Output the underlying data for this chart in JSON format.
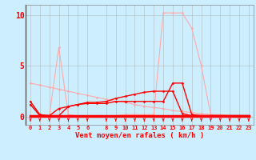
{
  "xlabel": "Vent moyen/en rafales ( km/h )",
  "x_values": [
    0,
    1,
    2,
    3,
    4,
    5,
    6,
    7,
    8,
    9,
    10,
    11,
    12,
    13,
    14,
    15,
    16,
    17,
    18,
    19,
    20,
    21,
    22,
    23
  ],
  "lines": [
    {
      "y": [
        3.3,
        3.1,
        2.9,
        2.7,
        2.5,
        2.3,
        2.1,
        1.9,
        1.7,
        1.5,
        1.4,
        1.2,
        1.0,
        0.9,
        0.8,
        0.6,
        0.5,
        0.4,
        0.3,
        0.2,
        0.2,
        0.1,
        0.1,
        0.05
      ],
      "color": "#ffaaaa",
      "lw": 0.8,
      "marker": "D",
      "ms": 1.5
    },
    {
      "y": [
        0.1,
        0.1,
        0.1,
        6.8,
        0.2,
        0.1,
        0.1,
        0.1,
        0.1,
        0.1,
        0.2,
        0.2,
        0.2,
        0.2,
        10.2,
        10.2,
        10.2,
        8.7,
        5.0,
        0.2,
        0.1,
        0.1,
        0.1,
        0.1
      ],
      "color": "#ffaaaa",
      "lw": 0.8,
      "marker": "D",
      "ms": 1.5
    },
    {
      "y": [
        1.5,
        0.2,
        0.1,
        0.1,
        1.0,
        1.2,
        1.3,
        1.3,
        1.3,
        1.5,
        1.5,
        1.5,
        1.5,
        1.5,
        1.5,
        3.3,
        3.3,
        0.2,
        0.1,
        0.1,
        0.1,
        0.1,
        0.1,
        0.1
      ],
      "color": "#ff0000",
      "lw": 1.0,
      "marker": "D",
      "ms": 1.5
    },
    {
      "y": [
        1.2,
        0.1,
        0.1,
        0.8,
        1.0,
        1.2,
        1.4,
        1.4,
        1.5,
        1.8,
        2.0,
        2.2,
        2.4,
        2.5,
        2.5,
        2.5,
        0.3,
        0.1,
        0.1,
        0.1,
        0.1,
        0.1,
        0.1,
        0.1
      ],
      "color": "#ff0000",
      "lw": 1.0,
      "marker": "D",
      "ms": 1.5
    },
    {
      "y": [
        0.1,
        0.1,
        0.1,
        0.1,
        0.1,
        0.1,
        0.1,
        0.1,
        0.1,
        0.1,
        0.1,
        0.1,
        0.1,
        0.1,
        0.1,
        0.1,
        0.1,
        0.1,
        0.1,
        0.1,
        0.1,
        0.1,
        0.1,
        0.1
      ],
      "color": "#ff0000",
      "lw": 2.5,
      "marker": "D",
      "ms": 1.5
    }
  ],
  "background_color": "#cceeff",
  "grid_color": "#aaaaaa",
  "yticks": [
    0,
    5,
    10
  ],
  "xticks": [
    0,
    1,
    2,
    3,
    4,
    5,
    6,
    8,
    9,
    10,
    11,
    12,
    13,
    14,
    15,
    16,
    17,
    18,
    19,
    20,
    21,
    22,
    23
  ],
  "ylim": [
    -0.8,
    11
  ],
  "xlim": [
    -0.5,
    23.5
  ],
  "arrow_color": "#ff0000",
  "tick_label_color": "#ff0000",
  "axis_label_color": "#ff0000"
}
